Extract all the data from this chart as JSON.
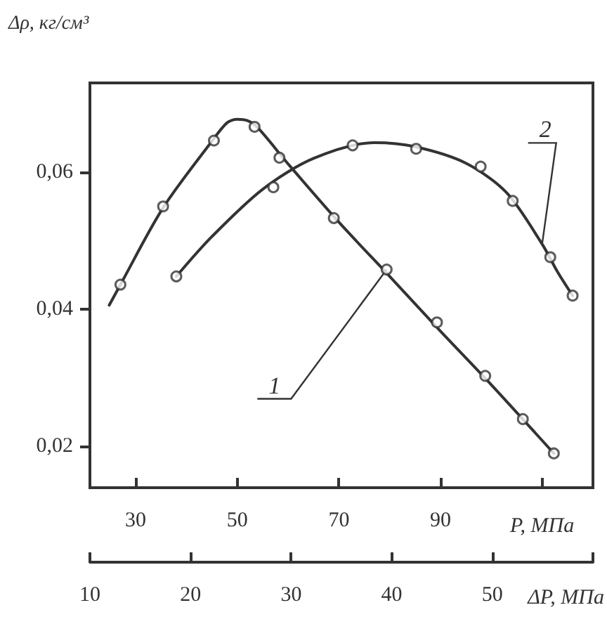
{
  "chart_data": {
    "type": "line",
    "ylabel": "Δρ, кг/см³",
    "xlabel": "P, МПа",
    "x2label": "ΔP, МПа",
    "xlim": [
      21,
      120
    ],
    "xticks": [
      30,
      50,
      70,
      90,
      {
        "value": 110,
        "label": null
      }
    ],
    "x2lim": [
      10,
      60
    ],
    "x2ticks": [
      10,
      20,
      30,
      40,
      50,
      {
        "value": 60,
        "label": null
      }
    ],
    "ylim": [
      0.014,
      0.073
    ],
    "yticks": [
      {
        "value": 0.02,
        "label": "0,02"
      },
      {
        "value": 0.04,
        "label": "0,04"
      },
      {
        "value": 0.06,
        "label": "0,06"
      }
    ],
    "grid": false,
    "series": [
      {
        "color": "#333333",
        "marker": "none",
        "x": [
          24.8,
          27,
          35.4,
          45,
          48,
          50,
          52,
          54,
          60,
          70,
          80,
          90,
          100,
          112.3
        ],
        "values": [
          0.0406,
          0.0436,
          0.0548,
          0.0645,
          0.0672,
          0.0677,
          0.0675,
          0.0665,
          0.0612,
          0.0527,
          0.0448,
          0.0368,
          0.029,
          0.019
        ]
      },
      {
        "color": "#333333",
        "marker": "none",
        "x": [
          38,
          45,
          55,
          65,
          77,
          85,
          95,
          103,
          110,
          113,
          116
        ],
        "values": [
          0.0448,
          0.0506,
          0.0575,
          0.062,
          0.0643,
          0.0637,
          0.0613,
          0.057,
          0.0495,
          0.0455,
          0.042
        ]
      },
      {
        "type": "scatter",
        "marker": "circle",
        "color": "#333333",
        "x": [
          27,
          35.4,
          45.4,
          53.4,
          58.3,
          69,
          79.4,
          89.3,
          98.8,
          106.2,
          112.3
        ],
        "values": [
          0.0436,
          0.055,
          0.0646,
          0.0666,
          0.0621,
          0.0533,
          0.0458,
          0.0381,
          0.0303,
          0.024,
          0.019
        ]
      },
      {
        "type": "scatter",
        "marker": "circle",
        "color": "#333333",
        "x": [
          38,
          57.1,
          72.7,
          85.2,
          97.9,
          104.2,
          111.6,
          116
        ],
        "values": [
          0.0448,
          0.0578,
          0.0639,
          0.0634,
          0.0608,
          0.0558,
          0.0476,
          0.042
        ]
      }
    ],
    "annotations": [
      {
        "text": "1",
        "x": 79.4,
        "y": 0.0458
      },
      {
        "text": "2",
        "x": 110,
        "y": 0.0495
      }
    ]
  }
}
